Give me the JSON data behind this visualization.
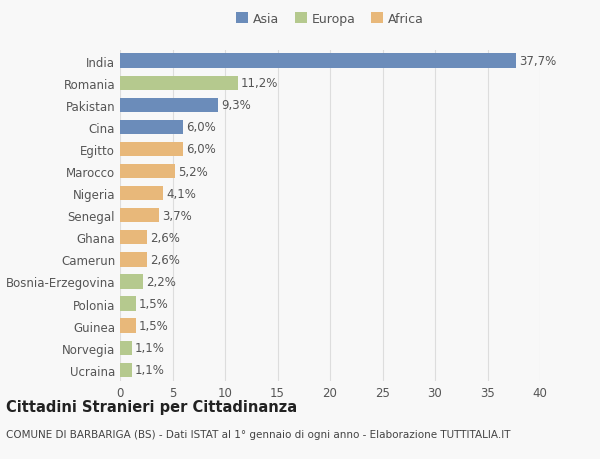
{
  "countries": [
    "India",
    "Romania",
    "Pakistan",
    "Cina",
    "Egitto",
    "Marocco",
    "Nigeria",
    "Senegal",
    "Ghana",
    "Camerun",
    "Bosnia-Erzegovina",
    "Polonia",
    "Guinea",
    "Norvegia",
    "Ucraina"
  ],
  "values": [
    37.7,
    11.2,
    9.3,
    6.0,
    6.0,
    5.2,
    4.1,
    3.7,
    2.6,
    2.6,
    2.2,
    1.5,
    1.5,
    1.1,
    1.1
  ],
  "labels": [
    "37,7%",
    "11,2%",
    "9,3%",
    "6,0%",
    "6,0%",
    "5,2%",
    "4,1%",
    "3,7%",
    "2,6%",
    "2,6%",
    "2,2%",
    "1,5%",
    "1,5%",
    "1,1%",
    "1,1%"
  ],
  "continents": [
    "Asia",
    "Europa",
    "Asia",
    "Asia",
    "Africa",
    "Africa",
    "Africa",
    "Africa",
    "Africa",
    "Africa",
    "Europa",
    "Europa",
    "Africa",
    "Europa",
    "Europa"
  ],
  "colors": {
    "Asia": "#6b8cba",
    "Europa": "#b5c98e",
    "Africa": "#e8b87a"
  },
  "legend_labels": [
    "Asia",
    "Europa",
    "Africa"
  ],
  "title": "Cittadini Stranieri per Cittadinanza",
  "subtitle": "COMUNE DI BARBARIGA (BS) - Dati ISTAT al 1° gennaio di ogni anno - Elaborazione TUTTITALIA.IT",
  "xlim": [
    0,
    40
  ],
  "xticks": [
    0,
    5,
    10,
    15,
    20,
    25,
    30,
    35,
    40
  ],
  "background_color": "#f8f8f8",
  "bar_height": 0.65,
  "grid_color": "#dddddd",
  "text_color": "#555555",
  "label_fontsize": 8.5,
  "tick_fontsize": 8.5,
  "title_fontsize": 10.5,
  "subtitle_fontsize": 7.5
}
